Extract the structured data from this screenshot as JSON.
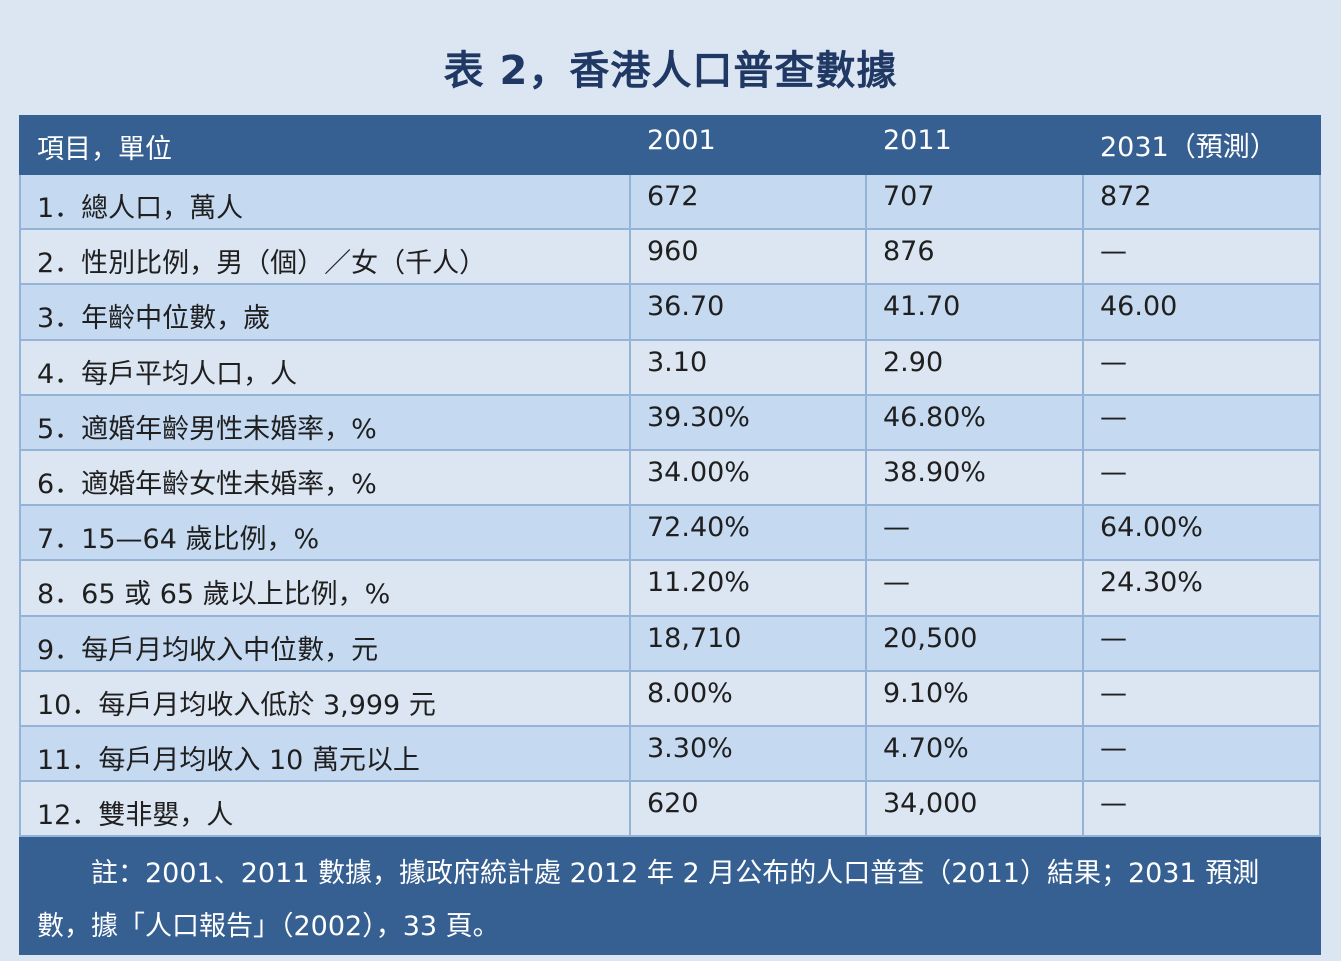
{
  "title": "表 2，香港人口普查數據",
  "headers": [
    "項目，單位",
    "2001",
    "2011",
    "2031（預測）"
  ],
  "rows": [
    {
      "label": "1．總人口，萬人",
      "v2001": "672",
      "v2011": "707",
      "v2031": "872"
    },
    {
      "label": "2．性別比例，男（個）／女（千人）",
      "v2001": "960",
      "v2011": "876",
      "v2031": "—"
    },
    {
      "label": "3．年齡中位數，歲",
      "v2001": "36.70",
      "v2011": "41.70",
      "v2031": "46.00"
    },
    {
      "label": "4．每戶平均人口，人",
      "v2001": "3.10",
      "v2011": "2.90",
      "v2031": "—"
    },
    {
      "label": "5．適婚年齡男性未婚率，%",
      "v2001": "39.30%",
      "v2011": "46.80%",
      "v2031": "—"
    },
    {
      "label": "6．適婚年齡女性未婚率，%",
      "v2001": "34.00%",
      "v2011": "38.90%",
      "v2031": "—"
    },
    {
      "label": "7．15—64 歲比例，%",
      "v2001": "72.40%",
      "v2011": "—",
      "v2031": "64.00%"
    },
    {
      "label": "8．65 或 65 歲以上比例，%",
      "v2001": "11.20%",
      "v2011": "—",
      "v2031": "24.30%"
    },
    {
      "label": "9．每戶月均收入中位數，元",
      "v2001": "18,710",
      "v2011": "20,500",
      "v2031": "—"
    },
    {
      "label": "10．每戶月均收入低於 3,999 元",
      "v2001": "8.00%",
      "v2011": "9.10%",
      "v2031": "—"
    },
    {
      "label": "11．每戶月均收入 10 萬元以上",
      "v2001": "3.30%",
      "v2011": "4.70%",
      "v2031": "—"
    },
    {
      "label": "12．雙非嬰，人",
      "v2001": "620",
      "v2011": "34,000",
      "v2031": "—"
    }
  ],
  "note": "註：2001、2011 數據，據政府統計處 2012 年 2 月公布的人口普查（2011）結果；2031 預測數，據「人口報告」（2002），33 頁。",
  "colors": {
    "header_bg": "#376092",
    "row_odd": "#c5d9f1",
    "row_even": "#dce6f2",
    "page_bg": "#dce6f2"
  }
}
